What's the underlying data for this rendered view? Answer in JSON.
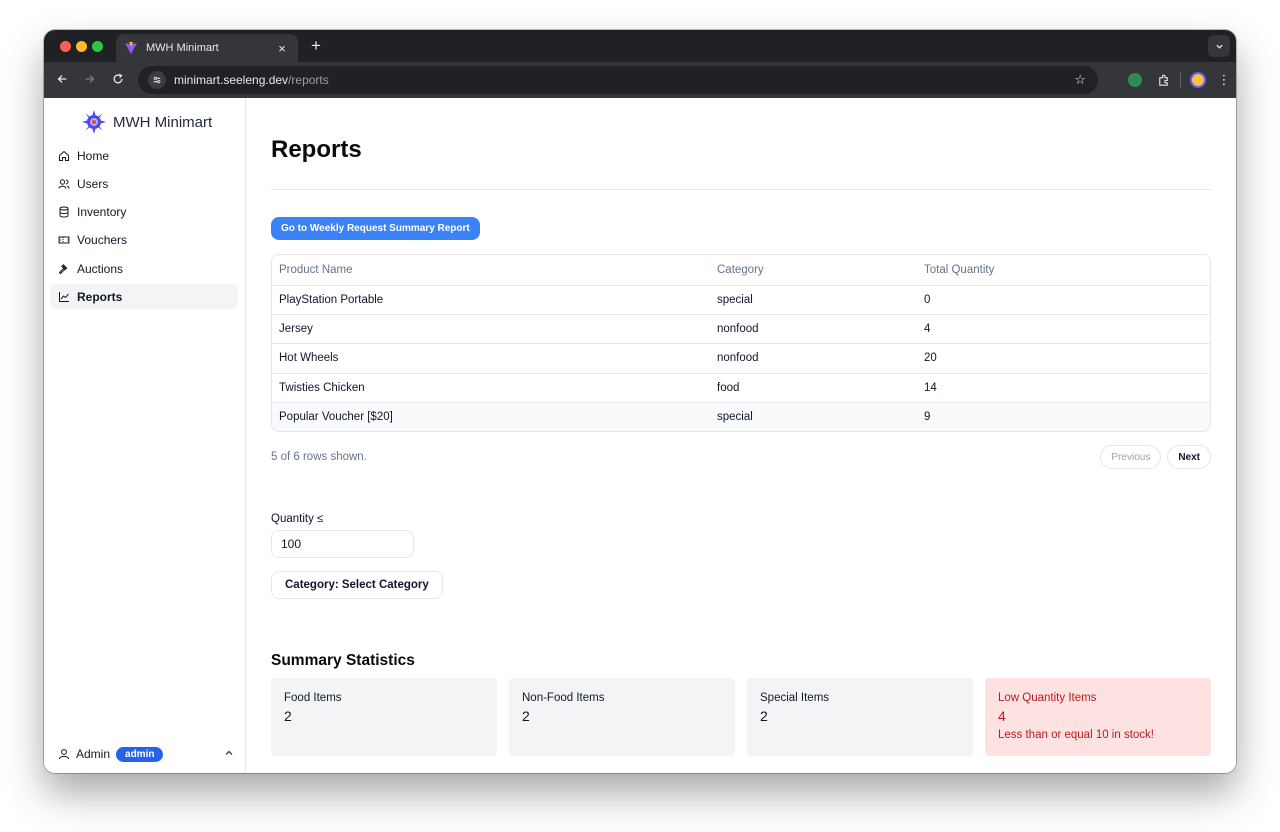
{
  "browser": {
    "tab_title": "MWH Minimart",
    "tab_close": "×",
    "new_tab": "+",
    "url_host": "minimart.seeleng.dev",
    "url_path": "/reports"
  },
  "sidebar": {
    "brand": "MWH Minimart",
    "items": [
      {
        "label": "Home",
        "icon": "home-icon"
      },
      {
        "label": "Users",
        "icon": "users-icon"
      },
      {
        "label": "Inventory",
        "icon": "database-icon"
      },
      {
        "label": "Vouchers",
        "icon": "ticket-icon"
      },
      {
        "label": "Auctions",
        "icon": "gavel-icon"
      },
      {
        "label": "Reports",
        "icon": "chart-line-icon"
      }
    ],
    "active": "Reports",
    "user": {
      "name": "Admin",
      "role": "admin"
    }
  },
  "main": {
    "title": "Reports",
    "weekly_button": "Go to Weekly Request Summary Report",
    "table": {
      "columns": [
        "Product Name",
        "Category",
        "Total Quantity"
      ],
      "rows": [
        [
          "PlayStation Portable",
          "special",
          "0"
        ],
        [
          "Jersey",
          "nonfood",
          "4"
        ],
        [
          "Hot Wheels",
          "nonfood",
          "20"
        ],
        [
          "Twisties Chicken",
          "food",
          "14"
        ],
        [
          "Popular Voucher [$20]",
          "special",
          "9"
        ]
      ]
    },
    "rows_shown": "5 of 6 rows shown.",
    "pagination": {
      "previous": "Previous",
      "next": "Next"
    },
    "filters": {
      "quantity_label": "Quantity ≤",
      "quantity_value": "100",
      "category_button": "Category: Select Category"
    },
    "summary": {
      "title": "Summary Statistics",
      "cards": [
        {
          "label": "Food Items",
          "value": "2"
        },
        {
          "label": "Non-Food Items",
          "value": "2"
        },
        {
          "label": "Special Items",
          "value": "2"
        },
        {
          "label": "Low Quantity Items",
          "value": "4",
          "note": "Less than or equal 10 in stock!"
        }
      ]
    }
  },
  "colors": {
    "accent": "#3b82f6",
    "badge": "#2563eb",
    "warn_bg": "#fee2e2",
    "warn_text": "#b91c1c"
  }
}
